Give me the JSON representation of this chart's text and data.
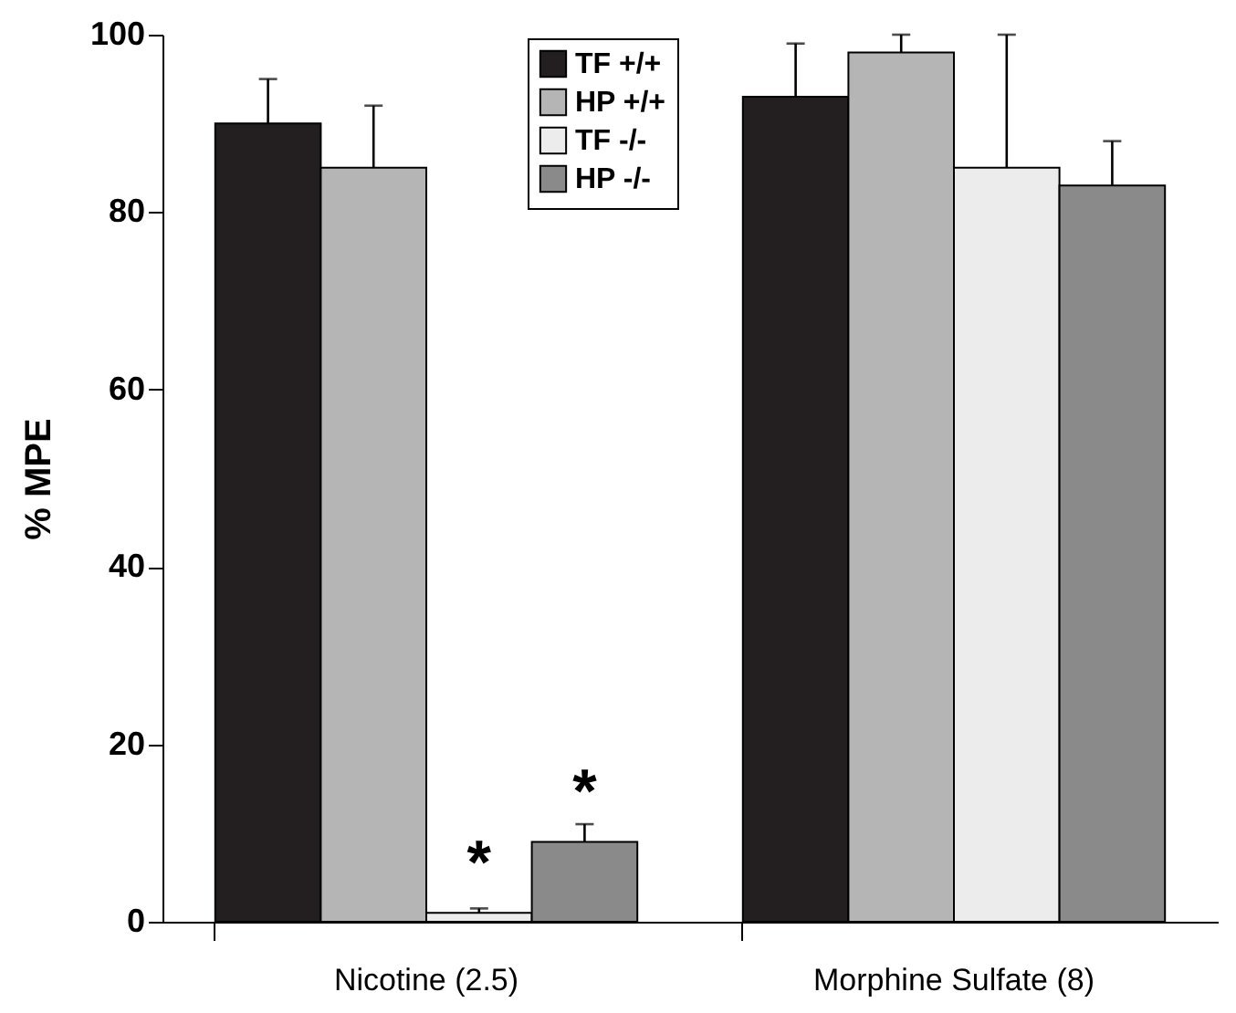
{
  "chart_data": {
    "type": "bar",
    "ylabel": "% MPE",
    "categories": [
      "Nicotine (2.5)",
      "Morphine Sulfate (8)"
    ],
    "series": [
      {
        "name": "TF +/+",
        "color": "#231f20",
        "values": [
          90,
          93
        ],
        "errors": [
          5,
          6
        ]
      },
      {
        "name": "HP +/+",
        "color": "#b5b5b5",
        "values": [
          85,
          98
        ],
        "errors": [
          7,
          2
        ]
      },
      {
        "name": "TF -/-",
        "color": "#ececec",
        "values": [
          1,
          85
        ],
        "errors": [
          0.5,
          15
        ]
      },
      {
        "name": "HP -/-",
        "color": "#8a8a8a",
        "values": [
          9,
          83
        ],
        "errors": [
          2,
          5
        ]
      }
    ],
    "annotations": [
      {
        "text": "*",
        "x": "Nicotine (2.5)",
        "y": 8
      },
      {
        "text": "*",
        "x": "Nicotine (2.5)",
        "y": 16
      }
    ],
    "ylim": [
      0,
      100
    ],
    "yticks": [
      0,
      20,
      40,
      60,
      80,
      100
    ],
    "grid": false,
    "legend": "top"
  }
}
